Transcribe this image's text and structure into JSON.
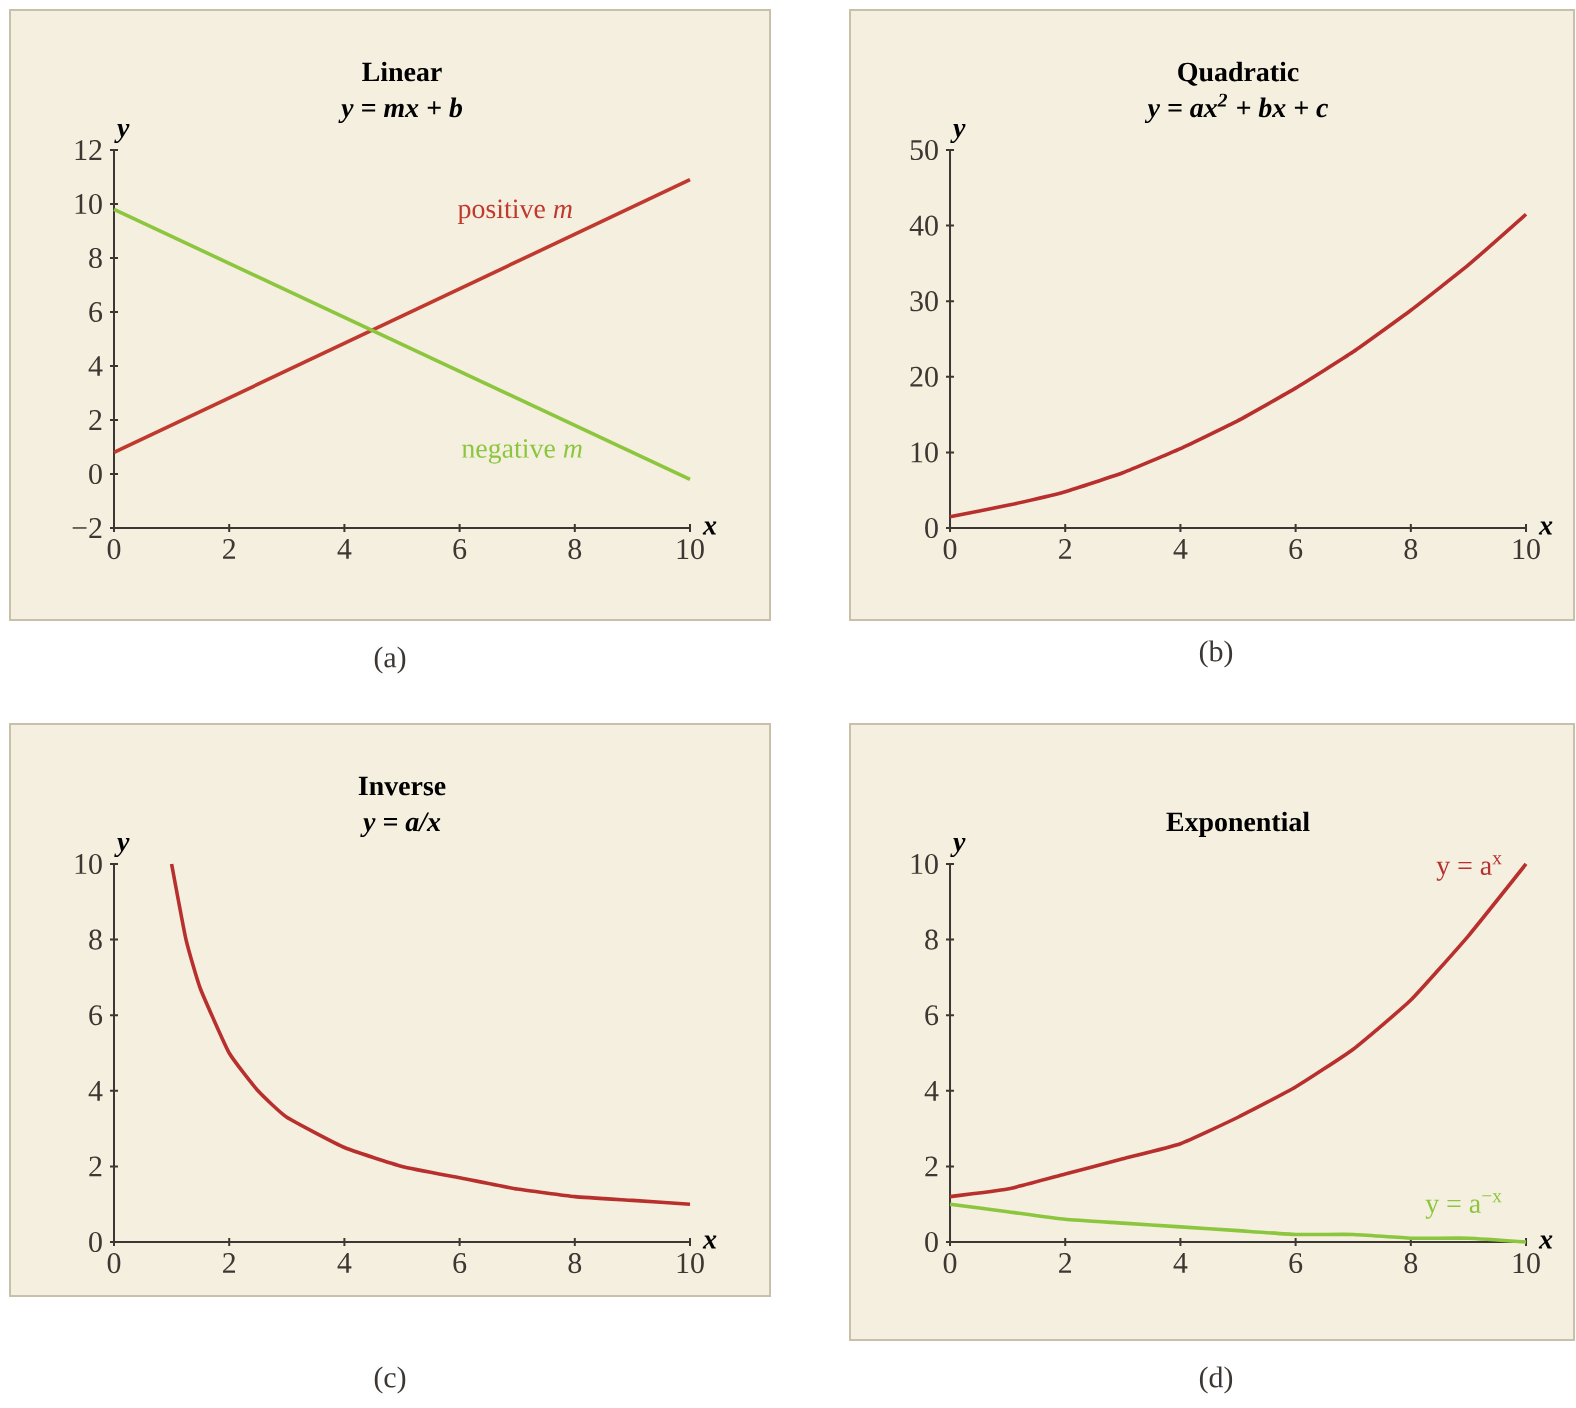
{
  "chart_data": [
    {
      "type": "line",
      "title": "Linear",
      "subtitle": "y = mx + b",
      "xlabel": "x",
      "ylabel": "y",
      "xlim": [
        0,
        10
      ],
      "ylim": [
        -2,
        12
      ],
      "xticks": [
        0,
        2,
        4,
        6,
        8,
        10
      ],
      "yticks": [
        {
          "value": -2,
          "label": "−2"
        },
        0,
        2,
        4,
        6,
        8,
        10,
        12
      ],
      "annotations": [
        "(a)"
      ],
      "series": [
        {
          "name": "positive *m*",
          "color": "#c0392f",
          "x": [
            0,
            10
          ],
          "values": [
            0.8,
            10.9
          ]
        },
        {
          "name": "negative *m*",
          "color": "#8cc63e",
          "x": [
            0,
            10
          ],
          "values": [
            9.8,
            -0.2
          ]
        }
      ]
    },
    {
      "type": "line",
      "title": "Quadratic",
      "subtitle": "y = ax$^{2}$ + bx + c",
      "xlabel": "x",
      "ylabel": "y",
      "xlim": [
        0,
        10
      ],
      "ylim": [
        0,
        50
      ],
      "xticks": [
        0,
        2,
        4,
        6,
        8,
        10
      ],
      "yticks": [
        0,
        10,
        20,
        30,
        40,
        50
      ],
      "annotations": [
        "(b)"
      ],
      "series": [
        {
          "color": "#b8302e",
          "x": [
            0,
            1,
            2,
            3,
            4,
            5,
            6,
            7,
            8,
            9,
            10
          ],
          "values": [
            1.5,
            3,
            4.8,
            7.3,
            10.5,
            14.2,
            18.5,
            23.3,
            28.8,
            34.8,
            41.5
          ]
        }
      ]
    },
    {
      "type": "line",
      "title": "Inverse",
      "subtitle": "y = a/x",
      "xlabel": "x",
      "ylabel": "y",
      "xlim": [
        0,
        10
      ],
      "ylim": [
        0,
        10
      ],
      "xticks": [
        0,
        2,
        4,
        6,
        8,
        10
      ],
      "yticks": [
        0,
        2,
        4,
        6,
        8,
        10
      ],
      "annotations": [
        "(c)"
      ],
      "series": [
        {
          "color": "#b8302e",
          "x": [
            1,
            1.25,
            1.5,
            2,
            2.5,
            3,
            4,
            5,
            6,
            7,
            8,
            9,
            10
          ],
          "values": [
            10,
            8,
            6.7,
            5,
            4,
            3.3,
            2.5,
            2,
            1.7,
            1.4,
            1.2,
            1.1,
            1
          ]
        }
      ]
    },
    {
      "type": "line",
      "title": "Exponential",
      "xlabel": "x",
      "ylabel": "y",
      "xlim": [
        0,
        10
      ],
      "ylim": [
        0,
        10
      ],
      "xticks": [
        0,
        2,
        4,
        6,
        8,
        10
      ],
      "yticks": [
        0,
        2,
        4,
        6,
        8,
        10
      ],
      "annotations": [
        "(d)"
      ],
      "series": [
        {
          "name": "y = a$^{x}$",
          "color": "#b8302e",
          "x": [
            0,
            1,
            2,
            3,
            4,
            5,
            6,
            7,
            8,
            9,
            10
          ],
          "values": [
            1.2,
            1.4,
            1.8,
            2.2,
            2.6,
            3.3,
            4.1,
            5.1,
            6.4,
            8.1,
            10
          ]
        },
        {
          "name": "y = a$^{−x}$",
          "color": "#8cc63e",
          "x": [
            0,
            1,
            2,
            3,
            4,
            5,
            6,
            7,
            8,
            9,
            10
          ],
          "values": [
            1.0,
            0.8,
            0.6,
            0.5,
            0.4,
            0.3,
            0.2,
            0.2,
            0.1,
            0.1,
            0.0
          ]
        }
      ]
    }
  ]
}
